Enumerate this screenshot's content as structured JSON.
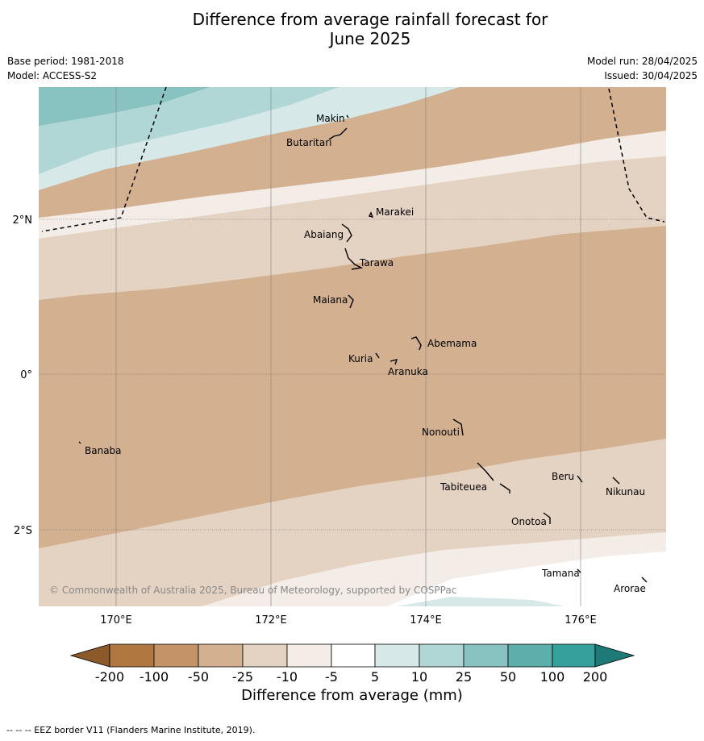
{
  "title_line1": "Difference from average rainfall forecast for",
  "title_line2": "June 2025",
  "base_period": "Base period: 1981-2018",
  "model": "Model: ACCESS-S2",
  "model_run": "Model run: 28/04/2025",
  "issued": "Issued: 30/04/2025",
  "copyright": "© Commonwealth of Australia 2025, Bureau of Meteorology, supported by COSPPac",
  "footnote": "--  --  -- EEZ border V11 (Flanders Marine Institute, 2019).",
  "lat_labels": [
    "2°N",
    "0°",
    "2°S"
  ],
  "lon_labels": [
    "170°E",
    "172°E",
    "174°E",
    "176°E"
  ],
  "places": [
    "Makin",
    "Butaritari",
    "Marakei",
    "Abaiang",
    "Tarawa",
    "Maiana",
    "Abemama",
    "Kuria",
    "Aranuka",
    "Nonouti",
    "Banaba",
    "Beru",
    "Nikunau",
    "Tabiteuea",
    "Onotoa",
    "Tamana",
    "Arorae"
  ],
  "legend": {
    "title": "Difference from average (mm)",
    "ticks": [
      "-200",
      "-100",
      "-50",
      "-25",
      "-10",
      "-5",
      "5",
      "10",
      "25",
      "50",
      "100",
      "200"
    ],
    "colors": [
      "#8c5a28",
      "#b07840",
      "#c49468",
      "#d2b090",
      "#e4d2c2",
      "#f4ece6",
      "#ffffff",
      "#d6e9e8",
      "#b0d7d6",
      "#88c3c1",
      "#5eaeac",
      "#36a09c",
      "#1e7a77"
    ]
  }
}
